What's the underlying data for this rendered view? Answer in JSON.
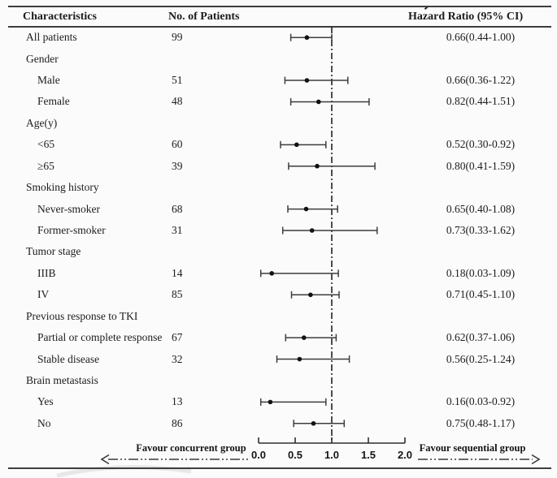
{
  "headers": {
    "characteristics": "Characteristics",
    "no_of_patients": "No. of Patients",
    "hazard_ratio": "Hazard Ratio (95% CI)"
  },
  "chart_data": {
    "type": "forest",
    "title": "",
    "xlabel": "",
    "x_axis": {
      "range": [
        0.0,
        2.0
      ],
      "ticks": [
        0.0,
        0.5,
        1.0,
        1.5,
        2.0
      ],
      "tick_labels": [
        "0.0",
        "0.5",
        "1.0",
        "1.5",
        "2.0"
      ],
      "reference_line": 1.0
    },
    "left_arrow_label": "Favour concurrent group",
    "right_arrow_label": "Favour sequential group",
    "rows": [
      {
        "label": "All patients",
        "type": "item",
        "indent": 0,
        "n": "99",
        "hr": 0.66,
        "lo": 0.44,
        "hi": 1.0,
        "hr_text": "0.66(0.44-1.00)"
      },
      {
        "label": "Gender",
        "type": "category",
        "indent": 0
      },
      {
        "label": "Male",
        "type": "item",
        "indent": 1,
        "n": "51",
        "hr": 0.66,
        "lo": 0.36,
        "hi": 1.22,
        "hr_text": "0.66(0.36-1.22)"
      },
      {
        "label": "Female",
        "type": "item",
        "indent": 1,
        "n": "48",
        "hr": 0.82,
        "lo": 0.44,
        "hi": 1.51,
        "hr_text": "0.82(0.44-1.51)"
      },
      {
        "label": "Age(y)",
        "type": "category",
        "indent": 0
      },
      {
        "label": "<65",
        "type": "item",
        "indent": 1,
        "n": "60",
        "hr": 0.52,
        "lo": 0.3,
        "hi": 0.92,
        "hr_text": "0.52(0.30-0.92)"
      },
      {
        "label": "≥65",
        "type": "item",
        "indent": 1,
        "n": "39",
        "hr": 0.8,
        "lo": 0.41,
        "hi": 1.59,
        "hr_text": "0.80(0.41-1.59)"
      },
      {
        "label": "Smoking history",
        "type": "category",
        "indent": 0
      },
      {
        "label": "Never-smoker",
        "type": "item",
        "indent": 1,
        "n": "68",
        "hr": 0.65,
        "lo": 0.4,
        "hi": 1.08,
        "hr_text": "0.65(0.40-1.08)"
      },
      {
        "label": "Former-smoker",
        "type": "item",
        "indent": 1,
        "n": "31",
        "hr": 0.73,
        "lo": 0.33,
        "hi": 1.62,
        "hr_text": "0.73(0.33-1.62)"
      },
      {
        "label": "Tumor stage",
        "type": "category",
        "indent": 0
      },
      {
        "label": "IIIB",
        "type": "item",
        "indent": 1,
        "n": "14",
        "hr": 0.18,
        "lo": 0.03,
        "hi": 1.09,
        "hr_text": "0.18(0.03-1.09)"
      },
      {
        "label": "IV",
        "type": "item",
        "indent": 1,
        "n": "85",
        "hr": 0.71,
        "lo": 0.45,
        "hi": 1.1,
        "hr_text": "0.71(0.45-1.10)"
      },
      {
        "label": "Previous response to TKI",
        "type": "category",
        "indent": 0
      },
      {
        "label": "Partial or complete response",
        "type": "item",
        "indent": 1,
        "n": "67",
        "hr": 0.62,
        "lo": 0.37,
        "hi": 1.06,
        "hr_text": "0.62(0.37-1.06)"
      },
      {
        "label": "Stable disease",
        "type": "item",
        "indent": 1,
        "n": "32",
        "hr": 0.56,
        "lo": 0.25,
        "hi": 1.24,
        "hr_text": "0.56(0.25-1.24)"
      },
      {
        "label": "Brain metastasis",
        "type": "category",
        "indent": 0
      },
      {
        "label": "Yes",
        "type": "item",
        "indent": 1,
        "n": "13",
        "hr": 0.16,
        "lo": 0.03,
        "hi": 0.92,
        "hr_text": "0.16(0.03-0.92)"
      },
      {
        "label": "No",
        "type": "item",
        "indent": 1,
        "n": "86",
        "hr": 0.75,
        "lo": 0.48,
        "hi": 1.17,
        "hr_text": "0.75(0.48-1.17)"
      }
    ],
    "colors": {
      "line": "#3d3d3d",
      "marker": "#111111",
      "text": "#1c1c1c"
    }
  }
}
